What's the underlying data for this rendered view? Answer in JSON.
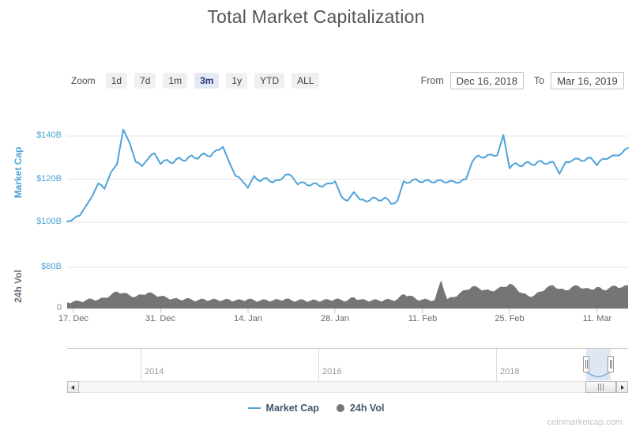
{
  "range_selector": {
    "zoom_label": "Zoom",
    "buttons": [
      {
        "label": "1d",
        "selected": false
      },
      {
        "label": "7d",
        "selected": false
      },
      {
        "label": "1m",
        "selected": false
      },
      {
        "label": "3m",
        "selected": true
      },
      {
        "label": "1y",
        "selected": false
      },
      {
        "label": "YTD",
        "selected": false
      },
      {
        "label": "ALL",
        "selected": false
      }
    ],
    "from_label": "From",
    "from_value": "Dec 16, 2018",
    "to_label": "To",
    "to_value": "Mar 16, 2019"
  },
  "chart_data": {
    "type": "line",
    "title": "Total Market Capitalization",
    "grid": true,
    "legend_position": "bottom",
    "x_range": {
      "start": "Dec 16, 2018",
      "end": "Mar 16, 2019",
      "unit": "day",
      "points": 91
    },
    "x_ticks": [
      {
        "day": 1,
        "label": "17. Dec"
      },
      {
        "day": 15,
        "label": "31. Dec"
      },
      {
        "day": 29,
        "label": "14. Jan"
      },
      {
        "day": 43,
        "label": "28. Jan"
      },
      {
        "day": 57,
        "label": "11. Feb"
      },
      {
        "day": 71,
        "label": "25. Feb"
      },
      {
        "day": 85,
        "label": "11. Mar"
      }
    ],
    "series": [
      {
        "name": "Market Cap",
        "type": "line",
        "color": "#4FA3D8",
        "unit": "$B",
        "axis": {
          "title": "Market Cap",
          "title_color": "#4FA3D8",
          "range": [
            95,
            148
          ],
          "ticks": [
            {
              "value": 100,
              "label": "$100B",
              "color": "#4FA3D8"
            },
            {
              "value": 120,
              "label": "$120B",
              "color": "#4FA3D8"
            },
            {
              "value": 140,
              "label": "$140B",
              "color": "#4FA3D8"
            }
          ]
        },
        "values": [
          100.5,
          101.5,
          103,
          107.5,
          112,
          118,
          115.5,
          123,
          127,
          143,
          137,
          128,
          126,
          129.5,
          132,
          127,
          129,
          127.5,
          130,
          128.5,
          131,
          129.5,
          132,
          130.5,
          133.5,
          135,
          128,
          121.5,
          119.5,
          116,
          121.5,
          119,
          120.5,
          118.5,
          119.5,
          122,
          121.5,
          117.5,
          118.5,
          117,
          118,
          116.5,
          118,
          119,
          112,
          110,
          114,
          110.5,
          109.5,
          111.5,
          110,
          111.5,
          108.5,
          110,
          119,
          118.5,
          120,
          118.5,
          119.5,
          118.5,
          119.5,
          118.5,
          119,
          118.5,
          120,
          128,
          131,
          130,
          131.5,
          131,
          140.5,
          125,
          127.5,
          126,
          128,
          126.5,
          128.5,
          127,
          128,
          122.5,
          128,
          128.5,
          129.5,
          128.5,
          130,
          126.5,
          129.5,
          130,
          131,
          132,
          134.5
        ]
      },
      {
        "name": "24h Vol",
        "type": "area",
        "color": "#757575",
        "unit": "$B",
        "axis": {
          "title": "24h Vol",
          "title_color": "#66707A",
          "range": [
            0,
            80
          ],
          "ticks": [
            {
              "value": 0,
              "label": "0",
              "color": "#888888"
            },
            {
              "value": 80,
              "label": "$80B",
              "color": "#4FA3D8"
            }
          ]
        },
        "values": [
          12,
          13.5,
          14,
          16,
          18.5,
          17,
          21,
          26,
          33,
          30,
          26,
          23,
          27,
          31,
          27,
          24,
          21,
          19,
          17.5,
          19,
          17,
          16,
          18,
          16.5,
          17.5,
          16,
          17.5,
          15.5,
          16.5,
          18,
          16,
          15.5,
          16.5,
          15.5,
          17,
          18.5,
          16,
          15.5,
          16.5,
          15,
          16,
          15.5,
          17,
          18,
          16.5,
          15.5,
          22,
          17,
          15.5,
          16.5,
          15.5,
          17,
          16.5,
          18,
          28,
          25,
          18,
          17.5,
          16.5,
          17,
          55,
          18,
          22,
          30,
          36,
          43,
          40,
          36,
          34,
          38,
          42,
          48,
          40,
          30,
          24,
          26,
          33,
          41,
          45,
          38,
          35,
          42,
          44,
          39,
          37,
          42,
          36,
          40,
          44,
          41,
          45
        ]
      }
    ]
  },
  "navigator": {
    "year_labels": [
      "2014",
      "2016",
      "2018"
    ],
    "selection": {
      "start_label": "Dec 16, 2018",
      "end_label": "Mar 16, 2019"
    }
  },
  "legend": {
    "items": [
      {
        "label": "Market Cap",
        "marker": "line",
        "color": "#4FA3D8"
      },
      {
        "label": "24h Vol",
        "marker": "circle",
        "color": "#757575"
      }
    ]
  },
  "watermark": "coinmarketcap.com"
}
